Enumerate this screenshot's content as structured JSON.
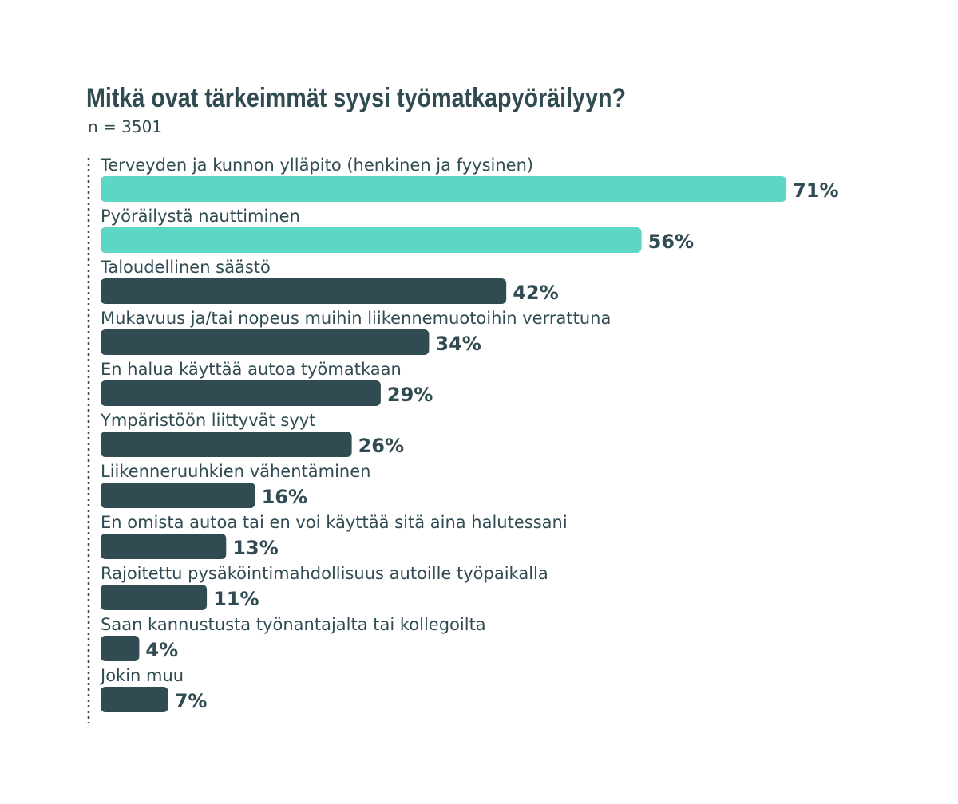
{
  "chart_data": {
    "type": "bar",
    "orientation": "horizontal",
    "title": "Mitkä ovat tärkeimmät syysi työmatkapyöräilyyn?",
    "subtitle": "n = 3501",
    "categories": [
      "Terveyden ja kunnon ylläpito (henkinen ja fyysinen)",
      "Pyöräilystä nauttiminen",
      "Taloudellinen säästö",
      "Mukavuus ja/tai nopeus muihin liikennemuotoihin verrattuna",
      "En halua käyttää autoa työmatkaan",
      "Ympäristöön liittyvät syyt",
      "Liikenneruuhkien vähentäminen",
      "En omista autoa tai en voi käyttää sitä aina halutessani",
      "Rajoitettu pysäköintimahdollisuus autoille työpaikalla",
      "Saan kannustusta työnantajalta tai kollegoilta",
      "Jokin muu"
    ],
    "values": [
      71,
      56,
      42,
      34,
      29,
      26,
      16,
      13,
      11,
      4,
      7
    ],
    "value_labels": [
      "71%",
      "56%",
      "42%",
      "34%",
      "29%",
      "26%",
      "16%",
      "13%",
      "11%",
      "4%",
      "7%"
    ],
    "colors": [
      "#5dd6c4",
      "#5dd6c4",
      "#304b52",
      "#304b52",
      "#304b52",
      "#304b52",
      "#304b52",
      "#304b52",
      "#304b52",
      "#304b52",
      "#304b52"
    ]
  }
}
